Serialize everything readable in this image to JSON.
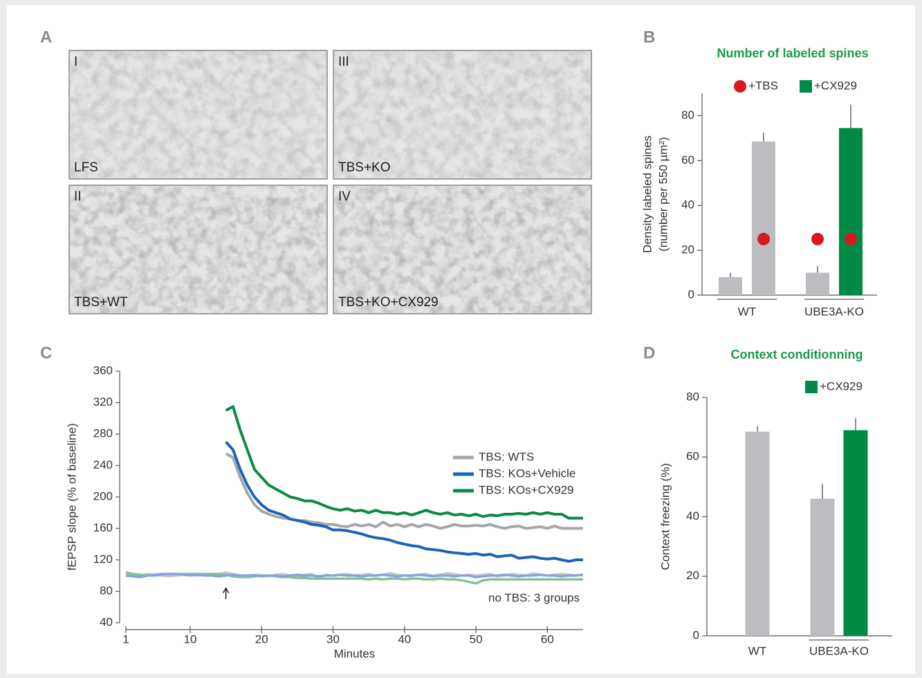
{
  "panel_a": {
    "label": "A",
    "images": [
      {
        "numeral": "I",
        "caption": "LFS"
      },
      {
        "numeral": "III",
        "caption": "TBS+KO"
      },
      {
        "numeral": "II",
        "caption": "TBS+WT"
      },
      {
        "numeral": "IV",
        "caption": "TBS+KO+CX929"
      }
    ]
  },
  "chart_data": [
    {
      "type": "bar",
      "panel_label": "B",
      "title": "Number of labeled spines",
      "ylabel": [
        "Density labeled spines",
        "(number per 550 µm²)"
      ],
      "ylim": [
        0,
        90
      ],
      "yticks": [
        0,
        20,
        40,
        60,
        80
      ],
      "legend": [
        {
          "label": "+TBS",
          "color": "#d71920",
          "shape": "circle"
        },
        {
          "label": "+CX929",
          "color": "#008a44",
          "shape": "square"
        }
      ],
      "groups": [
        {
          "label": "WT",
          "bars": [
            {
              "value": 8,
              "error": 2,
              "color": "#bcbdc0"
            },
            {
              "value": 68.5,
              "error": 4,
              "color": "#bcbdc0",
              "dot": 25
            }
          ]
        },
        {
          "label": "UBE3A-KO",
          "bars": [
            {
              "value": 10,
              "error": 3,
              "color": "#bcbdc0",
              "dot": 25
            },
            {
              "value": 74.5,
              "error": 10.5,
              "color": "#008a44",
              "dot": 25
            }
          ]
        }
      ]
    },
    {
      "type": "line",
      "panel_label": "C",
      "xlabel": "Minutes",
      "ylabel": "fEPSP slope (% of baseline)",
      "xlim": [
        1,
        65
      ],
      "xticks": [
        1,
        10,
        20,
        30,
        40,
        50,
        60
      ],
      "ylim": [
        40,
        360
      ],
      "yticks": [
        40,
        80,
        120,
        160,
        200,
        240,
        280,
        320,
        360
      ],
      "x": [
        1,
        2,
        3,
        4,
        5,
        6,
        7,
        8,
        9,
        10,
        11,
        12,
        13,
        14,
        15,
        16,
        17,
        18,
        19,
        20,
        21,
        22,
        23,
        24,
        25,
        26,
        27,
        28,
        29,
        30,
        31,
        32,
        33,
        34,
        35,
        36,
        37,
        38,
        39,
        40,
        41,
        42,
        43,
        44,
        45,
        46,
        47,
        48,
        49,
        50,
        51,
        52,
        53,
        54,
        55,
        56,
        57,
        58,
        59,
        60,
        61,
        62,
        63,
        64,
        65
      ],
      "series": [
        {
          "color": "#c9c9c9",
          "values": [
            103,
            101,
            100,
            102,
            101,
            100,
            99,
            100,
            101,
            100,
            100,
            101,
            100,
            102,
            104,
            102,
            100,
            100,
            101,
            100,
            99,
            101,
            102,
            100,
            98,
            101,
            102,
            96,
            101,
            100,
            101,
            102,
            100,
            101,
            102,
            100,
            101,
            103,
            101,
            100,
            99,
            101,
            102,
            100,
            101,
            103,
            102,
            100,
            101,
            100,
            101,
            102,
            99,
            100,
            102,
            101,
            100,
            103,
            101,
            100,
            101,
            102,
            101,
            100,
            101
          ]
        },
        {
          "color": "#82c293",
          "values": [
            104,
            102,
            101,
            100,
            100,
            101,
            102,
            102,
            102,
            102,
            102,
            102,
            102,
            102,
            101,
            99,
            98,
            98,
            99,
            100,
            100,
            99,
            98,
            98,
            97,
            97,
            96,
            96,
            96,
            96,
            96,
            96,
            96,
            96,
            95,
            96,
            95,
            96,
            96,
            95,
            96,
            96,
            95,
            95,
            96,
            95,
            95,
            94,
            92,
            90,
            94,
            95,
            95,
            95,
            95,
            95,
            95,
            95,
            95,
            95,
            95,
            95,
            95,
            95,
            95
          ]
        },
        {
          "color": "#86a3da",
          "values": [
            100,
            99,
            98,
            100,
            101,
            102,
            102,
            102,
            101,
            101,
            101,
            100,
            100,
            99,
            100,
            101,
            100,
            100,
            100,
            99,
            100,
            100,
            99,
            100,
            101,
            100,
            100,
            99,
            100,
            100,
            101,
            100,
            100,
            99,
            100,
            100,
            101,
            100,
            99,
            100,
            100,
            101,
            100,
            99,
            100,
            100,
            99,
            100,
            100,
            98,
            99,
            100,
            100,
            101,
            100,
            99,
            100,
            100,
            101,
            100,
            100,
            99,
            100,
            100,
            101
          ]
        },
        {
          "name": "TBS: WTS",
          "color": "#a5a6a9",
          "values": [
            null,
            null,
            null,
            null,
            null,
            null,
            null,
            null,
            null,
            null,
            null,
            null,
            null,
            null,
            255,
            250,
            225,
            205,
            190,
            182,
            178,
            175,
            173,
            172,
            170,
            170,
            168,
            167,
            165,
            165,
            163,
            162,
            165,
            163,
            165,
            162,
            168,
            163,
            165,
            162,
            165,
            162,
            165,
            163,
            160,
            162,
            165,
            163,
            163,
            164,
            163,
            165,
            162,
            160,
            162,
            163,
            160,
            161,
            162,
            160,
            163,
            160,
            160,
            160,
            160
          ]
        },
        {
          "name": "TBS: KOs+Vehicle",
          "color": "#1c63b7",
          "values": [
            null,
            null,
            null,
            null,
            null,
            null,
            null,
            null,
            null,
            null,
            null,
            null,
            null,
            null,
            270,
            260,
            235,
            215,
            200,
            190,
            183,
            180,
            177,
            172,
            170,
            168,
            165,
            164,
            162,
            158,
            158,
            157,
            155,
            153,
            150,
            148,
            147,
            145,
            142,
            140,
            138,
            137,
            134,
            133,
            132,
            130,
            129,
            128,
            127,
            128,
            126,
            127,
            124,
            125,
            126,
            122,
            123,
            124,
            122,
            121,
            122,
            120,
            118,
            120,
            120
          ]
        },
        {
          "name": "TBS: KOs+CX929",
          "color": "#0b8a45",
          "values": [
            null,
            null,
            null,
            null,
            null,
            null,
            null,
            null,
            null,
            null,
            null,
            null,
            null,
            null,
            310,
            315,
            285,
            260,
            235,
            225,
            215,
            210,
            205,
            200,
            198,
            195,
            195,
            192,
            188,
            185,
            183,
            185,
            182,
            183,
            180,
            183,
            180,
            180,
            178,
            180,
            177,
            180,
            183,
            180,
            178,
            180,
            177,
            178,
            176,
            178,
            175,
            177,
            176,
            178,
            178,
            179,
            178,
            180,
            178,
            180,
            178,
            178,
            173,
            173,
            173
          ]
        }
      ],
      "annotation": "no TBS: 3 groups",
      "arrow": {
        "x": 15,
        "y": [
          70,
          84
        ]
      }
    },
    {
      "type": "bar",
      "panel_label": "D",
      "title": "Context conditionning",
      "ylabel": "Context freezing (%)",
      "ylim": [
        0,
        80
      ],
      "yticks": [
        0,
        20,
        40,
        60,
        80
      ],
      "legend": [
        {
          "label": "+CX929",
          "color": "#008a44",
          "shape": "square"
        }
      ],
      "groups": [
        {
          "label": "WT",
          "bars": [
            {
              "value": 68.5,
              "error": 2,
              "color": "#bcbdc0"
            }
          ]
        },
        {
          "label": "UBE3A-KO",
          "bars": [
            {
              "value": 46,
              "error": 5,
              "color": "#bcbdc0"
            },
            {
              "value": 69,
              "error": 4,
              "color": "#008a44"
            }
          ]
        }
      ]
    }
  ]
}
